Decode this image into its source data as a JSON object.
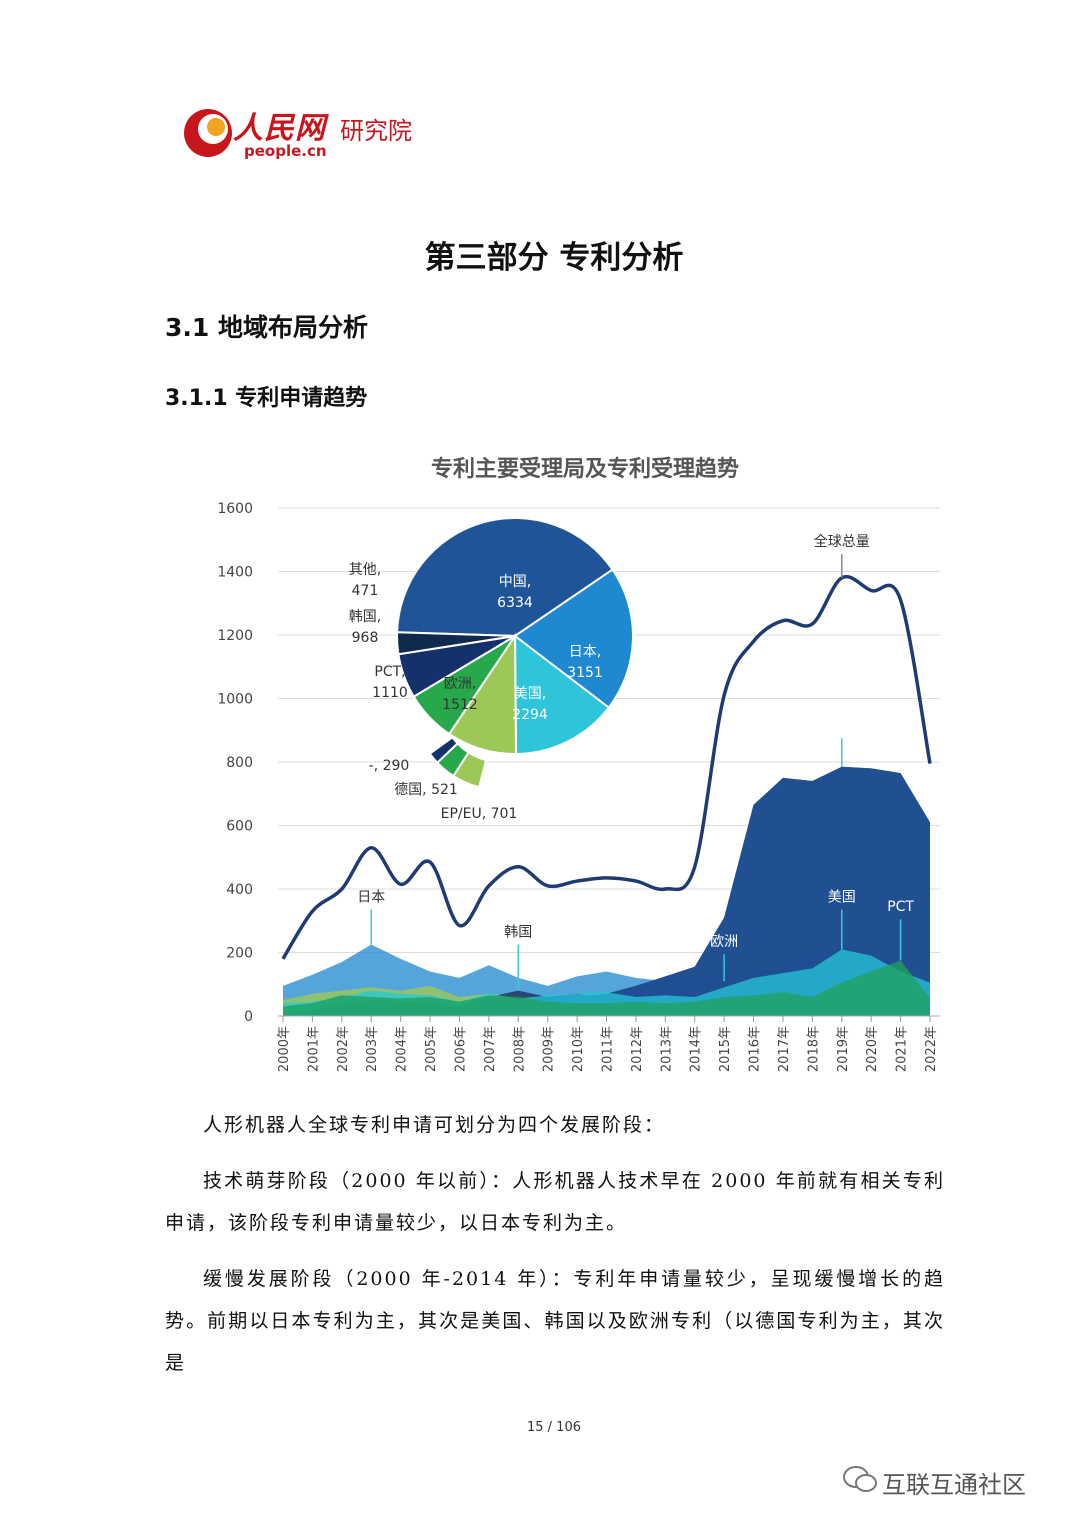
{
  "header": {
    "logo_cn": "人民网",
    "logo_institute": "研究院",
    "logo_en": "people.cn"
  },
  "headings": {
    "part": "第三部分 专利分析",
    "section": "3.1 地域布局分析",
    "subsection": "3.1.1 专利申请趋势"
  },
  "chart_data": {
    "type": "area",
    "title": "专利主要受理局及专利受理趋势",
    "categories": [
      "2000年",
      "2001年",
      "2002年",
      "2003年",
      "2004年",
      "2005年",
      "2006年",
      "2007年",
      "2008年",
      "2009年",
      "2010年",
      "2011年",
      "2012年",
      "2013年",
      "2014年",
      "2015年",
      "2016年",
      "2017年",
      "2018年",
      "2019年",
      "2020年",
      "2021年",
      "2022年"
    ],
    "ylim": [
      0,
      1600
    ],
    "yticks": [
      0,
      200,
      400,
      600,
      800,
      1000,
      1200,
      1400,
      1600
    ],
    "series": [
      {
        "name": "全球总量",
        "kind": "line",
        "color": "#1f3b73",
        "values": [
          180,
          330,
          400,
          530,
          415,
          485,
          285,
          410,
          470,
          410,
          425,
          435,
          425,
          400,
          470,
          1010,
          1180,
          1245,
          1235,
          1380,
          1340,
          1310,
          795
        ]
      },
      {
        "name": "日本",
        "color": "#2b8fd2",
        "values": [
          95,
          130,
          170,
          225,
          180,
          140,
          120,
          160,
          120,
          95,
          125,
          140,
          120,
          110,
          120,
          135,
          135,
          160,
          205,
          225,
          200,
          150,
          105
        ]
      },
      {
        "name": "美国",
        "color": "#26c6d9",
        "values": [
          40,
          45,
          60,
          80,
          70,
          65,
          45,
          70,
          55,
          65,
          70,
          75,
          60,
          65,
          60,
          90,
          120,
          135,
          150,
          210,
          190,
          140,
          105
        ]
      },
      {
        "name": "欧洲",
        "color": "#9dc857",
        "values": [
          50,
          70,
          80,
          90,
          80,
          95,
          60,
          70,
          65,
          50,
          55,
          50,
          55,
          45,
          60,
          110,
          80,
          80,
          70,
          80,
          90,
          70,
          45
        ]
      },
      {
        "name": "PCT",
        "color": "#22a25a",
        "values": [
          30,
          40,
          65,
          60,
          55,
          60,
          45,
          65,
          60,
          45,
          40,
          40,
          45,
          40,
          45,
          60,
          65,
          75,
          60,
          105,
          140,
          175,
          55
        ]
      },
      {
        "name": "韩国",
        "color": "#1a2f5c",
        "values": [
          10,
          20,
          35,
          50,
          45,
          40,
          30,
          60,
          80,
          60,
          70,
          55,
          60,
          55,
          40,
          50,
          50,
          60,
          50,
          55,
          45,
          40,
          25
        ]
      },
      {
        "name": "中国",
        "color": "#1f4f91",
        "values": [
          5,
          8,
          10,
          12,
          15,
          18,
          20,
          25,
          35,
          50,
          60,
          70,
          95,
          125,
          155,
          310,
          665,
          750,
          740,
          785,
          780,
          765,
          610
        ]
      }
    ],
    "annotations": [
      "全球总量",
      "中国",
      "日本",
      "韩国",
      "欧洲",
      "美国",
      "PCT"
    ],
    "pie": {
      "type": "pie",
      "slices": [
        {
          "label": "中国",
          "value": 6334,
          "color": "#1f5596"
        },
        {
          "label": "日本",
          "value": 3151,
          "color": "#1e88d0"
        },
        {
          "label": "美国",
          "value": 2294,
          "color": "#2ec4da"
        },
        {
          "label": "欧洲",
          "value": 1512,
          "color": "#9dc857"
        },
        {
          "label": "PCT",
          "value": 1110,
          "color": "#27a84a"
        },
        {
          "label": "韩国",
          "value": 968,
          "color": "#15316a"
        },
        {
          "label": "其他",
          "value": 471,
          "color": "#102a4d"
        }
      ],
      "exploded": [
        {
          "label": "EP/EU",
          "value": 701,
          "color": "#9dc857"
        },
        {
          "label": "德国",
          "value": 521,
          "color": "#27a84a"
        },
        {
          "label": "-",
          "value": 290,
          "color": "#15316a"
        }
      ]
    }
  },
  "body": {
    "p1": "人形机器人全球专利申请可划分为四个发展阶段：",
    "p2": "技术萌芽阶段（2000 年以前）：人形机器人技术早在 2000 年前就有相关专利申请，该阶段专利申请量较少，以日本专利为主。",
    "p3": "缓慢发展阶段（2000 年-2014 年）：专利年申请量较少，呈现缓慢增长的趋势。前期以日本专利为主，其次是美国、韩国以及欧洲专利（以德国专利为主，其次是"
  },
  "footer": {
    "page": "15 / 106",
    "watermark": "互联互通社区"
  }
}
